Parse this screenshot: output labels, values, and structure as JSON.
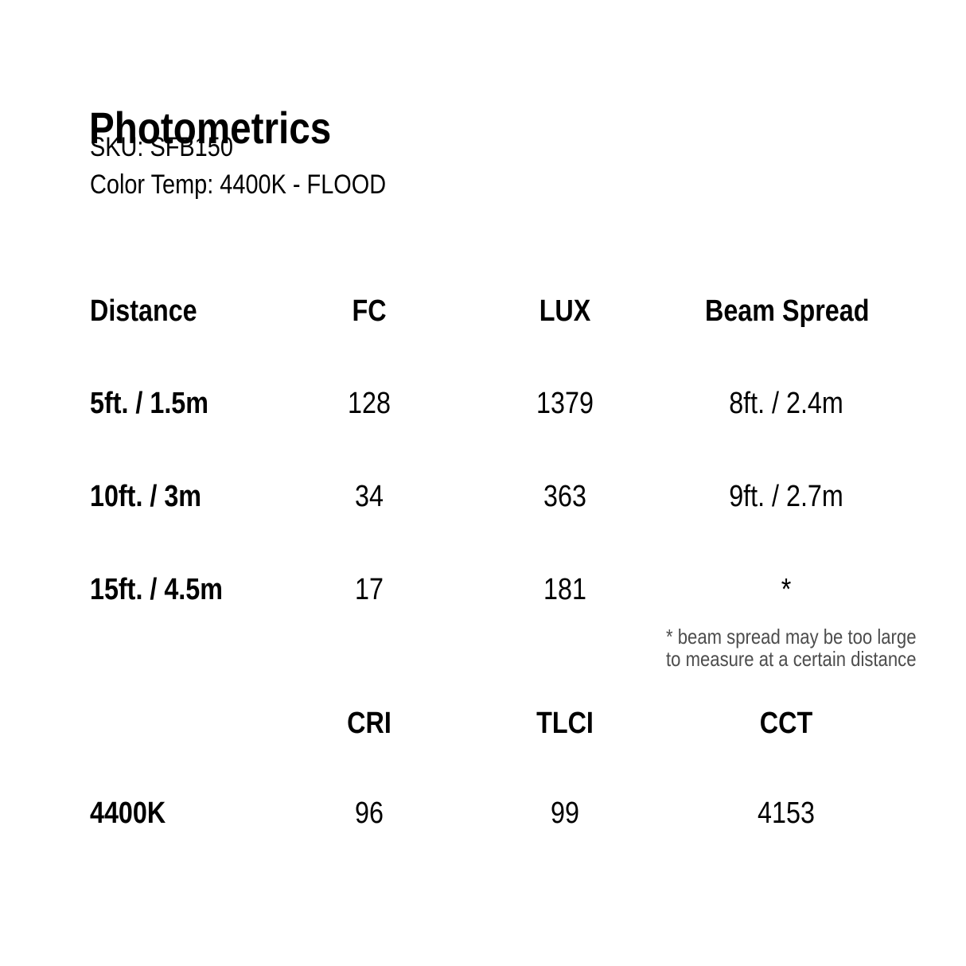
{
  "canvas": {
    "background_color": "#ffffff",
    "text_color": "#000000",
    "footnote_color": "#4d4d4d"
  },
  "header": {
    "title": "Photometrics",
    "sku_line": "SKU: SFB150",
    "color_temp_line": "Color Temp: 4400K - FLOOD"
  },
  "photometrics_table": {
    "columns": [
      "Distance",
      "FC",
      "LUX",
      "Beam Spread"
    ],
    "rows": [
      {
        "distance": "5ft. / 1.5m",
        "fc": "128",
        "lux": "1379",
        "beam_spread": "8ft. / 2.4m"
      },
      {
        "distance": "10ft. / 3m",
        "fc": "34",
        "lux": "363",
        "beam_spread": "9ft. / 2.7m"
      },
      {
        "distance": "15ft. / 4.5m",
        "fc": "17",
        "lux": "181",
        "beam_spread": "*"
      }
    ],
    "footnote": {
      "line1": "* beam spread may be too large",
      "line2": "to measure at a certain distance"
    }
  },
  "color_quality_table": {
    "columns": [
      "CRI",
      "TLCI",
      "CCT"
    ],
    "rows": [
      {
        "color_temp": "4400K",
        "cri": "96",
        "tlci": "99",
        "cct": "4153"
      }
    ]
  }
}
